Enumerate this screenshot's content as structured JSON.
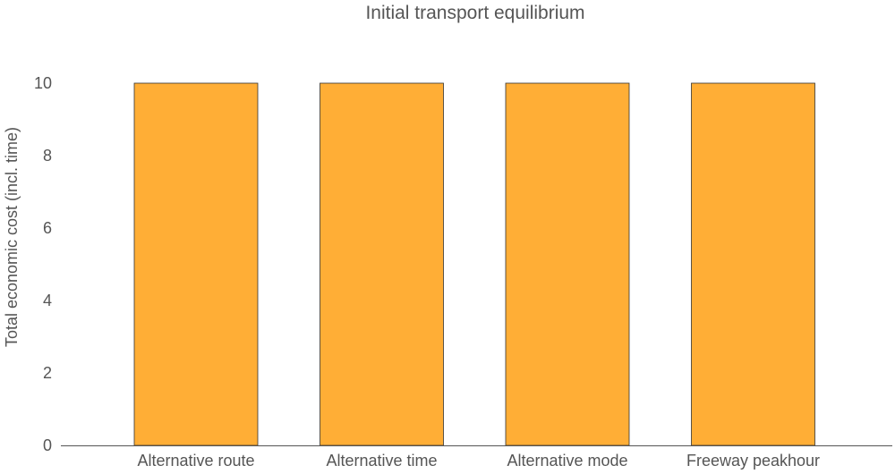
{
  "chart_data": {
    "type": "bar",
    "title": "Initial transport equilibrium",
    "xlabel": "",
    "ylabel": "Total economic cost (incl. time)",
    "categories": [
      "Alternative route",
      "Alternative time",
      "Alternative mode",
      "Freeway peakhour"
    ],
    "series": [
      {
        "values": [
          10,
          10,
          10,
          10
        ],
        "color": "#FFAE36"
      }
    ],
    "ylim": [
      0,
      10
    ],
    "yticks": [
      0,
      2,
      4,
      6,
      8,
      10
    ],
    "grid": false,
    "legend": "none"
  }
}
